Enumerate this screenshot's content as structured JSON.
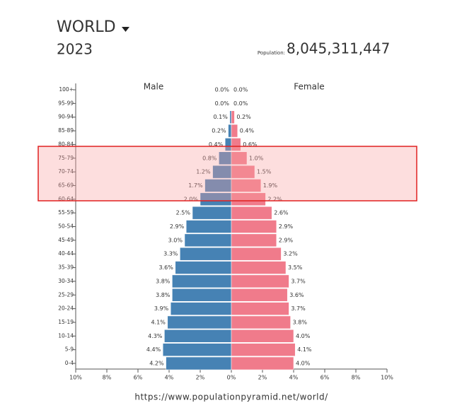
{
  "header": {
    "title": "WORLD",
    "year": "2023",
    "population_label": "Population:",
    "population": "8,045,311,447"
  },
  "chart_data": {
    "type": "pyramid",
    "categories": [
      "100+",
      "95-99",
      "90-94",
      "85-89",
      "80-84",
      "75-79",
      "70-74",
      "65-69",
      "60-64",
      "55-59",
      "50-54",
      "45-49",
      "40-44",
      "35-39",
      "30-34",
      "25-29",
      "20-24",
      "15-19",
      "10-14",
      "5-9",
      "0-4"
    ],
    "series": [
      {
        "name": "Male",
        "color": "#4682b4",
        "values": [
          0.0,
          0.0,
          0.1,
          0.2,
          0.4,
          0.8,
          1.2,
          1.7,
          2.0,
          2.5,
          2.9,
          3.0,
          3.3,
          3.6,
          3.8,
          3.8,
          3.9,
          4.1,
          4.3,
          4.4,
          4.2
        ],
        "value_labels": [
          "0.0%",
          "0.0%",
          "0.1%",
          "0.2%",
          "0.4%",
          "0.8%",
          "1.2%",
          "1.7%",
          "2.0%",
          "2.5%",
          "2.9%",
          "3.0%",
          "3.3%",
          "3.6%",
          "3.8%",
          "3.8%",
          "3.9%",
          "4.1%",
          "4.3%",
          "4.4%",
          "4.2%"
        ]
      },
      {
        "name": "Female",
        "color": "#f07b8b",
        "values": [
          0.0,
          0.0,
          0.2,
          0.4,
          0.6,
          1.0,
          1.5,
          1.9,
          2.2,
          2.6,
          2.9,
          2.9,
          3.2,
          3.5,
          3.7,
          3.6,
          3.7,
          3.8,
          4.0,
          4.1,
          4.0
        ],
        "value_labels": [
          "0.0%",
          "0.0%",
          "0.2%",
          "0.4%",
          "0.6%",
          "1.0%",
          "1.5%",
          "1.9%",
          "2.2%",
          "2.6%",
          "2.9%",
          "2.9%",
          "3.2%",
          "3.5%",
          "3.7%",
          "3.6%",
          "3.7%",
          "3.8%",
          "4.0%",
          "4.1%",
          "4.0%"
        ]
      }
    ],
    "xlim": [
      0,
      10
    ],
    "xticks": [
      {
        "value": 0,
        "label": "0%"
      },
      {
        "value": 2,
        "label": "2%"
      },
      {
        "value": 4,
        "label": "4%"
      },
      {
        "value": 6,
        "label": "6%"
      },
      {
        "value": 8,
        "label": "8%"
      },
      {
        "value": 10,
        "label": "10%"
      }
    ]
  },
  "source_url": "https://www.populationpyramid.net/world/"
}
